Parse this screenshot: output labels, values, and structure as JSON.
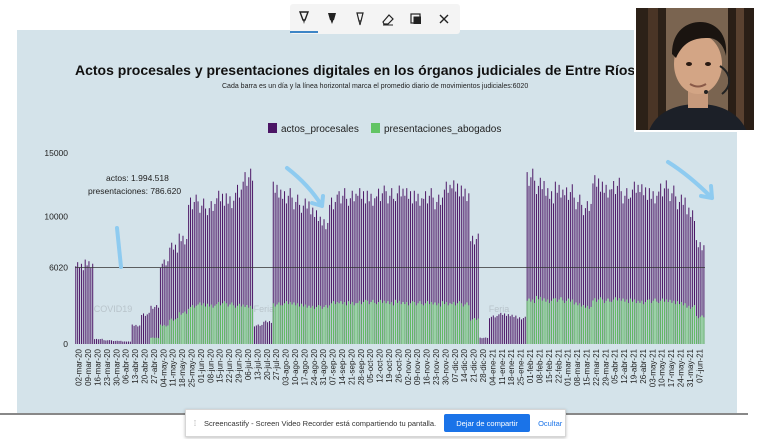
{
  "toolbar": {
    "tools": [
      {
        "name": "pen-tool",
        "icon": "pen-icon",
        "active": true
      },
      {
        "name": "highlighter-tool",
        "icon": "highlighter-icon",
        "active": false
      },
      {
        "name": "pen-outline-tool",
        "icon": "pen-outline-icon",
        "active": false
      },
      {
        "name": "eraser-tool",
        "icon": "eraser-icon",
        "active": false
      },
      {
        "name": "clear-tool",
        "icon": "clear-drawings-icon",
        "active": false
      },
      {
        "name": "close-tool",
        "icon": "close-icon",
        "active": false
      }
    ]
  },
  "share_bar": {
    "message": "Screencastify - Screen Video Recorder está compartiendo tu pantalla.",
    "stop_label": "Dejar de compartir",
    "hide_label": "Ocultar"
  },
  "colors": {
    "actos": "#4b1565",
    "presentaciones": "#62c464",
    "slide_bg": "#d4e3ea",
    "annotation": "#8ecbf0",
    "accent": "#1a73e8"
  },
  "chart_data": {
    "type": "bar",
    "title": "Actos procesales y presentaciones digitales en los órganos judiciales de Entre Ríos",
    "subtitle": "Cada barra es un día y la línea horizontal marca el promedio diario de movimientos judiciales:6020",
    "legend": [
      "actos_procesales",
      "presentaciones_abogados"
    ],
    "legend_position": "top-center",
    "stacked": true,
    "ylim": [
      0,
      15000
    ],
    "yticks": [
      0,
      6020,
      10000,
      15000
    ],
    "average_line": 6020,
    "annotation_text": [
      "actos: 1.994.518",
      "presentaciones: 786.620"
    ],
    "background_labels": [
      {
        "text": "COVID19",
        "at": "16-mar-20"
      },
      {
        "text": "Feria",
        "at": "13-jul-20"
      },
      {
        "text": "Feria",
        "at": "04-ene-21"
      }
    ],
    "xtick_labels": [
      "02-mar-20",
      "09-mar-20",
      "16-mar-20",
      "23-mar-20",
      "30-mar-20",
      "06-abr-20",
      "13-abr-20",
      "20-abr-20",
      "27-abr-20",
      "04-may-20",
      "11-may-20",
      "18-may-20",
      "25-may-20",
      "01-jun-20",
      "08-jun-20",
      "15-jun-20",
      "22-jun-20",
      "29-jun-20",
      "06-jul-20",
      "13-jul-20",
      "20-jul-20",
      "27-jul-20",
      "03-ago-20",
      "10-ago-20",
      "17-ago-20",
      "24-ago-20",
      "31-ago-20",
      "07-sep-20",
      "14-sep-20",
      "21-sep-20",
      "28-sep-20",
      "05-oct-20",
      "12-oct-20",
      "19-oct-20",
      "26-oct-20",
      "02-nov-20",
      "09-nov-20",
      "16-nov-20",
      "23-nov-20",
      "30-nov-20",
      "07-dic-20",
      "14-dic-20",
      "21-dic-20",
      "28-dic-20",
      "04-ene-21",
      "11-ene-21",
      "18-ene-21",
      "25-ene-21",
      "01-feb-21",
      "08-feb-21",
      "15-feb-21",
      "22-feb-21",
      "01-mar-21",
      "08-mar-21",
      "15-mar-21",
      "22-mar-21",
      "29-mar-21",
      "05-abr-21",
      "12-abr-21",
      "19-abr-21",
      "26-abr-21",
      "03-may-21",
      "10-may-21",
      "17-may-21",
      "24-may-21",
      "31-may-21",
      "07-jun-21"
    ],
    "weekly": [
      {
        "actos": 6300,
        "pres": 0
      },
      {
        "actos": 6500,
        "pres": 0
      },
      {
        "actos": 400,
        "pres": 0
      },
      {
        "actos": 300,
        "pres": 0
      },
      {
        "actos": 250,
        "pres": 0
      },
      {
        "actos": 200,
        "pres": 0
      },
      {
        "actos": 1500,
        "pres": 0
      },
      {
        "actos": 2400,
        "pres": 0
      },
      {
        "actos": 3000,
        "pres": 500
      },
      {
        "actos": 6500,
        "pres": 1500
      },
      {
        "actos": 7800,
        "pres": 2000
      },
      {
        "actos": 8500,
        "pres": 2500
      },
      {
        "actos": 11500,
        "pres": 3000
      },
      {
        "actos": 11200,
        "pres": 3200
      },
      {
        "actos": 11000,
        "pres": 3100
      },
      {
        "actos": 11800,
        "pres": 3300
      },
      {
        "actos": 11600,
        "pres": 3200
      },
      {
        "actos": 12500,
        "pres": 3100
      },
      {
        "actos": 13500,
        "pres": 3000
      },
      {
        "actos": 1500,
        "pres": 0
      },
      {
        "actos": 1800,
        "pres": 0
      },
      {
        "actos": 12500,
        "pres": 3200
      },
      {
        "actos": 12000,
        "pres": 3300
      },
      {
        "actos": 11500,
        "pres": 3200
      },
      {
        "actos": 11200,
        "pres": 3100
      },
      {
        "actos": 10500,
        "pres": 3000
      },
      {
        "actos": 9800,
        "pres": 3000
      },
      {
        "actos": 11500,
        "pres": 3300
      },
      {
        "actos": 12000,
        "pres": 3300
      },
      {
        "actos": 11800,
        "pres": 3300
      },
      {
        "actos": 12000,
        "pres": 3400
      },
      {
        "actos": 11800,
        "pres": 3400
      },
      {
        "actos": 12200,
        "pres": 3400
      },
      {
        "actos": 12000,
        "pres": 3300
      },
      {
        "actos": 12200,
        "pres": 3400
      },
      {
        "actos": 12000,
        "pres": 3300
      },
      {
        "actos": 11800,
        "pres": 3300
      },
      {
        "actos": 12000,
        "pres": 3300
      },
      {
        "actos": 11500,
        "pres": 3200
      },
      {
        "actos": 12500,
        "pres": 3300
      },
      {
        "actos": 12600,
        "pres": 3300
      },
      {
        "actos": 12200,
        "pres": 3200
      },
      {
        "actos": 8500,
        "pres": 2000
      },
      {
        "actos": 500,
        "pres": 0
      },
      {
        "actos": 2200,
        "pres": 0
      },
      {
        "actos": 2400,
        "pres": 0
      },
      {
        "actos": 2300,
        "pres": 0
      },
      {
        "actos": 2100,
        "pres": 0
      },
      {
        "actos": 13500,
        "pres": 3500
      },
      {
        "actos": 12800,
        "pres": 3700
      },
      {
        "actos": 12000,
        "pres": 3500
      },
      {
        "actos": 12500,
        "pres": 3600
      },
      {
        "actos": 12300,
        "pres": 3500
      },
      {
        "actos": 11500,
        "pres": 3200
      },
      {
        "actos": 11000,
        "pres": 3000
      },
      {
        "actos": 13000,
        "pres": 3600
      },
      {
        "actos": 12500,
        "pres": 3500
      },
      {
        "actos": 12800,
        "pres": 3600
      },
      {
        "actos": 12000,
        "pres": 3500
      },
      {
        "actos": 12500,
        "pres": 3500
      },
      {
        "actos": 12300,
        "pres": 3400
      },
      {
        "actos": 12000,
        "pres": 3500
      },
      {
        "actos": 12600,
        "pres": 3500
      },
      {
        "actos": 12200,
        "pres": 3400
      },
      {
        "actos": 11500,
        "pres": 3300
      },
      {
        "actos": 10500,
        "pres": 3000
      },
      {
        "actos": 8000,
        "pres": 2200
      }
    ]
  }
}
